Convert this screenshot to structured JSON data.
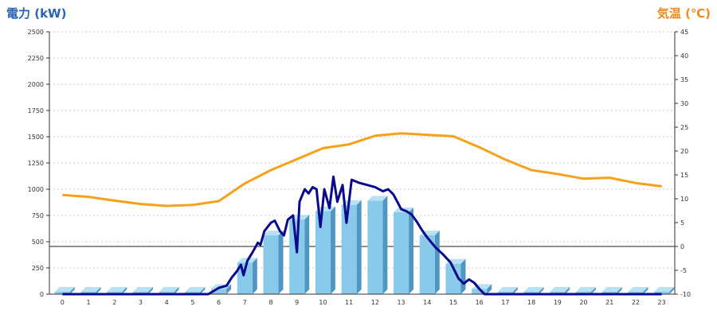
{
  "colors": {
    "power_title": "#2a62b5",
    "temp_title": "#f08a1e",
    "bar_front": "#89c9ea",
    "bar_side": "#4f97c2",
    "bar_top": "#b8e1f4",
    "power_line": "#0a0a8a",
    "temp_line": "#f7a11a",
    "grid": "#bbbbbb"
  },
  "chart_data": {
    "type": "bar",
    "title_left": "電力 (kW)",
    "title_right": "気温 (℃)",
    "categories": [
      "0",
      "1",
      "2",
      "3",
      "4",
      "5",
      "6",
      "7",
      "8",
      "9",
      "10",
      "11",
      "12",
      "13",
      "14",
      "15",
      "16",
      "17",
      "18",
      "19",
      "20",
      "21",
      "22",
      "23"
    ],
    "y_left": {
      "lim": [
        0,
        2500
      ],
      "ticks": [
        "0",
        "250",
        "500",
        "750",
        "1000",
        "1250",
        "1500",
        "1750",
        "2000",
        "2250",
        "2500"
      ]
    },
    "y_right": {
      "lim": [
        -10,
        45
      ],
      "ticks": [
        "-10",
        "-5",
        "0",
        "5",
        "10",
        "15",
        "20",
        "25",
        "30",
        "35",
        "40",
        "45"
      ]
    },
    "grid": "dashed horizontal",
    "series": [
      {
        "kind": "bar",
        "axis": "left",
        "values": [
          0,
          0,
          0,
          0,
          0,
          0,
          50,
          300,
          560,
          710,
          790,
          850,
          890,
          780,
          560,
          290,
          50,
          0,
          0,
          0,
          0,
          0,
          0,
          0
        ]
      },
      {
        "kind": "line",
        "axis": "left",
        "x": [
          0,
          5.6,
          6.0,
          6.3,
          6.5,
          6.7,
          6.85,
          6.95,
          7.1,
          7.3,
          7.5,
          7.6,
          7.75,
          8.0,
          8.15,
          8.35,
          8.5,
          8.65,
          8.85,
          9.0,
          9.1,
          9.3,
          9.45,
          9.6,
          9.75,
          9.9,
          10.05,
          10.25,
          10.4,
          10.55,
          10.75,
          10.9,
          11.1,
          11.4,
          11.7,
          12.0,
          12.3,
          12.5,
          12.7,
          12.85,
          13.0,
          13.2,
          13.4,
          13.6,
          13.8,
          14.0,
          14.3,
          14.6,
          14.9,
          15.2,
          15.4,
          15.6,
          15.8,
          16.0,
          16.2,
          16.4,
          23.0
        ],
        "values": [
          0,
          0,
          60,
          80,
          160,
          220,
          280,
          180,
          320,
          400,
          490,
          470,
          600,
          680,
          700,
          600,
          560,
          710,
          750,
          400,
          880,
          1000,
          960,
          1020,
          1000,
          640,
          1000,
          820,
          1120,
          880,
          1040,
          680,
          1090,
          1060,
          1040,
          1020,
          980,
          1000,
          950,
          880,
          810,
          790,
          760,
          690,
          610,
          540,
          450,
          380,
          300,
          150,
          100,
          140,
          110,
          50,
          0,
          0,
          0
        ]
      },
      {
        "kind": "line",
        "axis": "right",
        "x": [
          0,
          1,
          2,
          3,
          4,
          5,
          6,
          7,
          8,
          9,
          10,
          11,
          12,
          13,
          14,
          15,
          16,
          17,
          18,
          19,
          20,
          21,
          22,
          23
        ],
        "values": [
          10.8,
          10.4,
          9.6,
          8.9,
          8.5,
          8.7,
          9.5,
          13.2,
          16.0,
          18.3,
          20.6,
          21.4,
          23.2,
          23.7,
          23.4,
          23.1,
          20.8,
          18.2,
          16.0,
          15.2,
          14.2,
          14.4,
          13.3,
          12.6
        ]
      }
    ]
  }
}
